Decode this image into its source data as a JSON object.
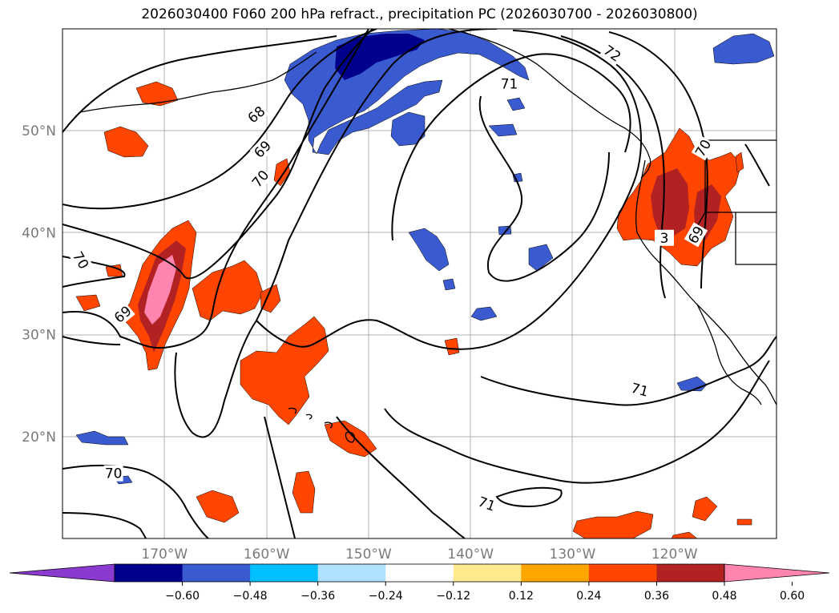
{
  "title": "2026030400 F060 200 hPa refract., precipitation PC (2026030700 - 2026030800)",
  "map": {
    "projection": "PlateCarree",
    "lon_range": [
      -180,
      -110
    ],
    "lat_range": [
      10,
      60
    ],
    "gridlines": true,
    "lon_ticks": [
      {
        "value": -170,
        "label": "170°W"
      },
      {
        "value": -160,
        "label": "160°W"
      },
      {
        "value": -150,
        "label": "150°W"
      },
      {
        "value": -140,
        "label": "140°W"
      },
      {
        "value": -130,
        "label": "130°W"
      },
      {
        "value": -120,
        "label": "120°W"
      }
    ],
    "lat_ticks": [
      {
        "value": 50,
        "label": "50°N"
      },
      {
        "value": 40,
        "label": "40°N"
      },
      {
        "value": 30,
        "label": "30°N"
      },
      {
        "value": 20,
        "label": "20°N"
      }
    ],
    "contour_labels": [
      {
        "text": "72",
        "lon": -126.1,
        "lat": 57.6,
        "angle": 35
      },
      {
        "text": "71",
        "lon": -136.2,
        "lat": 54.6,
        "angle": 0
      },
      {
        "text": "68",
        "lon": -161.0,
        "lat": 51.6,
        "angle": -40
      },
      {
        "text": "69",
        "lon": -160.4,
        "lat": 48.2,
        "angle": -45
      },
      {
        "text": "70",
        "lon": -160.6,
        "lat": 45.3,
        "angle": -50
      },
      {
        "text": "70",
        "lon": -117.2,
        "lat": 48.3,
        "angle": -60
      },
      {
        "text": "69",
        "lon": -117.9,
        "lat": 39.8,
        "angle": -60
      },
      {
        "text": "3",
        "lon": -121.0,
        "lat": 39.5,
        "angle": 0
      },
      {
        "text": "70",
        "lon": -178.2,
        "lat": 37.3,
        "angle": 60
      },
      {
        "text": "69",
        "lon": -174.1,
        "lat": 32.0,
        "angle": -40
      },
      {
        "text": "70",
        "lon": -175.0,
        "lat": 16.4,
        "angle": 0
      },
      {
        "text": "71",
        "lon": -123.4,
        "lat": 24.6,
        "angle": 15
      },
      {
        "text": "71",
        "lon": -138.4,
        "lat": 13.4,
        "angle": 20
      }
    ]
  },
  "colorbar": {
    "ticks": [
      "−0.60",
      "−0.48",
      "−0.36",
      "−0.24",
      "−0.12",
      "0.12",
      "0.24",
      "0.36",
      "0.48",
      "0.60"
    ],
    "colors": [
      "#8a3acf",
      "#00008c",
      "#3a5bd0",
      "#00bfff",
      "#b0e2ff",
      "#ffffff",
      "#ffe98c",
      "#ffa500",
      "#ff4500",
      "#b22222",
      "#ff85b0"
    ]
  },
  "colors": {
    "pink": "#ff85b0",
    "darkred": "#b22222",
    "orangered": "#ff4500",
    "orange": "#ffa500",
    "yellow": "#ffe98c",
    "lightblue": "#b0e2ff",
    "cyan": "#00bfff",
    "blue": "#3a5bd0",
    "navy": "#00008c"
  }
}
